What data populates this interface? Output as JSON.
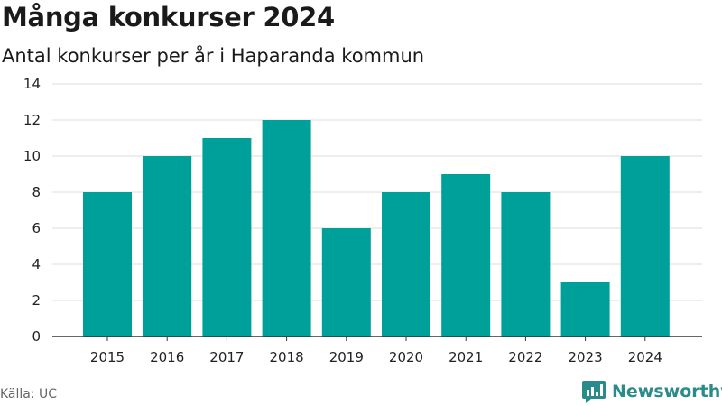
{
  "chart_data": {
    "type": "bar",
    "title": "Många konkurser 2024",
    "subtitle": "Antal konkurser per år i Haparanda kommun",
    "categories": [
      "2015",
      "2016",
      "2017",
      "2018",
      "2019",
      "2020",
      "2021",
      "2022",
      "2023",
      "2024"
    ],
    "values": [
      8,
      10,
      11,
      12,
      6,
      8,
      9,
      8,
      3,
      10
    ],
    "xlabel": "",
    "ylabel": "",
    "ylim": [
      0,
      14
    ],
    "yticks": [
      0,
      2,
      4,
      6,
      8,
      10,
      12,
      14
    ],
    "grid": true,
    "bar_color": "#00a09a"
  },
  "footer": {
    "source": "Källa: UC",
    "brand": "Newsworthy",
    "brand_color": "#2a8c8a"
  }
}
